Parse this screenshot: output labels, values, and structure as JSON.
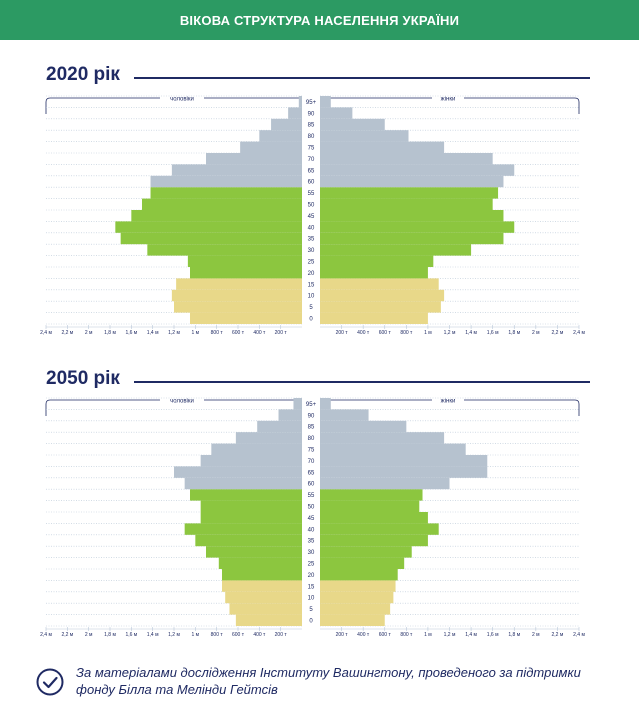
{
  "header": {
    "title": "ВІКОВА СТРУКТУРА НАСЕЛЕННЯ УКРАЇНИ"
  },
  "colors": {
    "header_bg": "#2c9a63",
    "title": "#1f2a63",
    "children": "#e8d889",
    "working": "#8cc63f",
    "elderly": "#b6c2cf",
    "grid": "#b9c7d8",
    "tick_text": "#1f2a63"
  },
  "footer": {
    "icon": "check-circle-icon",
    "note_line1": "За матеріалами дослідження Інституту Вашингтону, проведеного за підтримки",
    "note_line2": "фонду Білла та Мелінди Гейтсів"
  },
  "chart_data": [
    {
      "type": "bar",
      "title": "2020 рік",
      "left_label": "чоловіки",
      "right_label": "жінки",
      "categories": [
        "0",
        "5",
        "10",
        "15",
        "20",
        "25",
        "30",
        "35",
        "40",
        "45",
        "50",
        "55",
        "60",
        "65",
        "70",
        "75",
        "80",
        "85",
        "90",
        "95+"
      ],
      "series": [
        {
          "name": "чоловіки",
          "values": [
            1.05,
            1.2,
            1.22,
            1.18,
            1.05,
            1.07,
            1.45,
            1.7,
            1.75,
            1.6,
            1.5,
            1.42,
            1.42,
            1.22,
            0.9,
            0.58,
            0.4,
            0.29,
            0.13,
            0.03
          ]
        },
        {
          "name": "жінки",
          "values": [
            1.0,
            1.12,
            1.15,
            1.1,
            1.0,
            1.05,
            1.4,
            1.7,
            1.8,
            1.7,
            1.6,
            1.65,
            1.7,
            1.8,
            1.6,
            1.15,
            0.82,
            0.6,
            0.3,
            0.1
          ]
        }
      ],
      "age_groups": [
        {
          "name": "children",
          "from": 0,
          "to": 15
        },
        {
          "name": "working",
          "from": 20,
          "to": 55
        },
        {
          "name": "elderly",
          "from": 60,
          "to": 95
        }
      ],
      "left_ticks": [
        "2,4 м",
        "2,2 м",
        "2 м",
        "1,8 м",
        "1,6 м",
        "1,4 м",
        "1,2 м",
        "1 м",
        "800 т",
        "600 т",
        "400 т",
        "200 т"
      ],
      "right_ticks": [
        "200 т",
        "400 т",
        "600 т",
        "800 т",
        "1 м",
        "1,2 м",
        "1,4 м",
        "1,6 м",
        "1,8 м",
        "2 м",
        "2,2 м",
        "2,4 м"
      ],
      "xlim": [
        0,
        2.4
      ],
      "unit": "млн"
    },
    {
      "type": "bar",
      "title": "2050 рік",
      "left_label": "чоловіки",
      "right_label": "жінки",
      "categories": [
        "0",
        "5",
        "10",
        "15",
        "20",
        "25",
        "30",
        "35",
        "40",
        "45",
        "50",
        "55",
        "60",
        "65",
        "70",
        "75",
        "80",
        "85",
        "90",
        "95+"
      ],
      "series": [
        {
          "name": "чоловіки",
          "values": [
            0.62,
            0.68,
            0.72,
            0.75,
            0.75,
            0.78,
            0.9,
            1.0,
            1.1,
            0.95,
            0.95,
            1.05,
            1.1,
            1.2,
            0.95,
            0.85,
            0.62,
            0.42,
            0.22,
            0.08
          ]
        },
        {
          "name": "жінки",
          "values": [
            0.6,
            0.65,
            0.68,
            0.7,
            0.72,
            0.78,
            0.85,
            1.0,
            1.1,
            1.0,
            0.92,
            0.95,
            1.2,
            1.55,
            1.55,
            1.35,
            1.15,
            0.8,
            0.45,
            0.1
          ]
        }
      ],
      "age_groups": [
        {
          "name": "children",
          "from": 0,
          "to": 15
        },
        {
          "name": "working",
          "from": 20,
          "to": 55
        },
        {
          "name": "elderly",
          "from": 60,
          "to": 95
        }
      ],
      "left_ticks": [
        "2,4 м",
        "2,2 м",
        "2 м",
        "1,8 м",
        "1,6 м",
        "1,4 м",
        "1,2 м",
        "1 м",
        "800 т",
        "600 т",
        "400 т",
        "200 т"
      ],
      "right_ticks": [
        "200 т",
        "400 т",
        "600 т",
        "800 т",
        "1 м",
        "1,2 м",
        "1,4 м",
        "1,6 м",
        "1,8 м",
        "2 м",
        "2,2 м",
        "2,4 м"
      ],
      "xlim": [
        0,
        2.4
      ],
      "unit": "млн"
    }
  ]
}
